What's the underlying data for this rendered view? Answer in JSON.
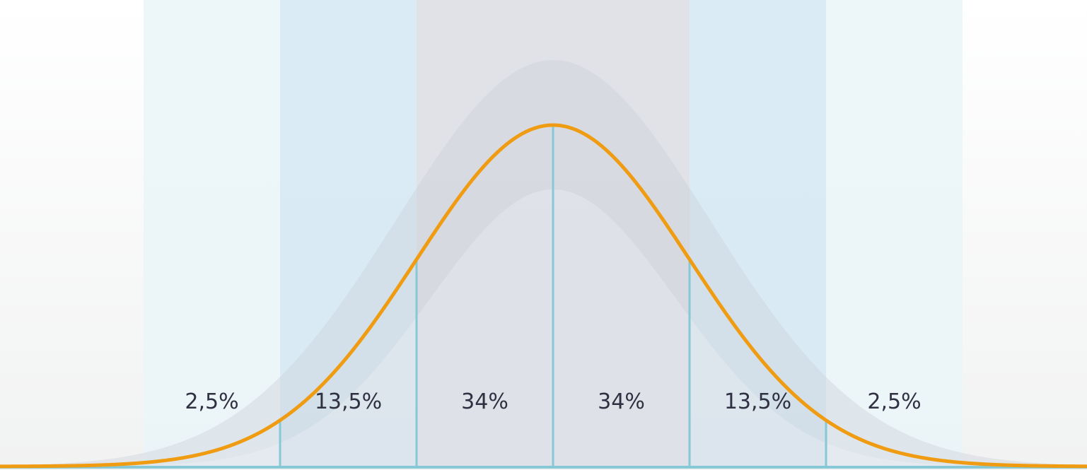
{
  "chart_data": {
    "type": "area",
    "title": "",
    "xlabel": "",
    "ylabel": "",
    "grid": false,
    "segments": [
      {
        "label": "2,5%",
        "value": 2.5,
        "from_sd": -3,
        "to_sd": -2
      },
      {
        "label": "13,5%",
        "value": 13.5,
        "from_sd": -2,
        "to_sd": -1
      },
      {
        "label": "34%",
        "value": 34,
        "from_sd": -1,
        "to_sd": 0
      },
      {
        "label": "34%",
        "value": 34,
        "from_sd": 0,
        "to_sd": 1
      },
      {
        "label": "13,5%",
        "value": 13.5,
        "from_sd": 1,
        "to_sd": 2
      },
      {
        "label": "2,5%",
        "value": 2.5,
        "from_sd": 2,
        "to_sd": 3
      }
    ],
    "xlim": [
      -4,
      4
    ],
    "dividers_sd": [
      -2,
      -1,
      0,
      1,
      2
    ],
    "colors": {
      "curve": "#f09c12",
      "divider": "#86c8d6",
      "baseline": "#86c8d6",
      "band_outer": "#eaf5f8",
      "band_middle": "#d5e8f3",
      "band_center": "#dadde3",
      "label_text": "#2f3142"
    }
  }
}
